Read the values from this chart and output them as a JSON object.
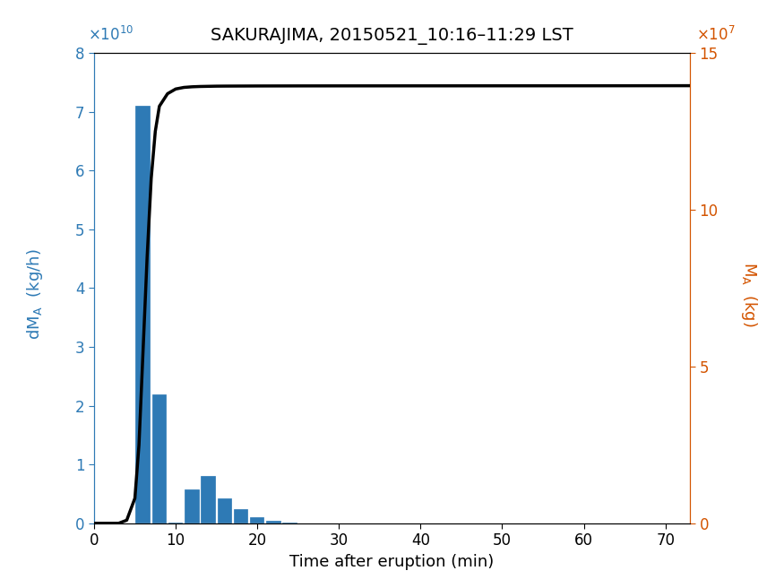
{
  "title": "SAKURAJIMA, 20150521_10:16–11:29 LST",
  "xlabel": "Time after eruption (min)",
  "bar_centers": [
    6,
    8,
    10,
    12,
    14,
    16,
    18,
    20,
    22,
    24,
    26
  ],
  "bar_heights": [
    71000000000.0,
    22000000000.0,
    200000000.0,
    5800000000.0,
    8000000000.0,
    4200000000.0,
    2400000000.0,
    1100000000.0,
    450000000.0,
    90000000.0,
    30000000.0
  ],
  "bar_color": "#2e7ab5",
  "bar_width": 1.8,
  "xlim": [
    0,
    73
  ],
  "ylim_left": [
    0,
    80000000000.0
  ],
  "ylim_right": [
    0,
    15000000.0
  ],
  "yticks_left": [
    0,
    10000000000.0,
    20000000000.0,
    30000000000.0,
    40000000000.0,
    50000000000.0,
    60000000000.0,
    70000000000.0,
    80000000000.0
  ],
  "yticks_right": [
    0,
    5000000.0,
    10000000.0,
    15000000.0
  ],
  "ytick_labels_right": [
    "0",
    "5",
    "10",
    "15"
  ],
  "xticks": [
    0,
    10,
    20,
    30,
    40,
    50,
    60,
    70
  ],
  "cum_x": [
    0,
    1,
    2,
    3,
    4,
    5,
    5.5,
    6,
    6.5,
    7,
    7.5,
    8,
    9,
    10,
    11,
    12,
    13,
    14,
    15,
    16,
    18,
    20,
    25,
    30,
    40,
    50,
    60,
    73
  ],
  "cum_y": [
    0,
    0,
    0,
    0,
    100000.0,
    800000.0,
    2500000.0,
    5500000.0,
    8500000.0,
    11000000.0,
    12500000.0,
    13300000.0,
    13700000.0,
    13850000.0,
    13900000.0,
    13920000.0,
    13930000.0,
    13935000.0,
    13940000.0,
    13942000.0,
    13944000.0,
    13946000.0,
    13948000.0,
    13949000.0,
    13950000.0,
    13951000.0,
    13952000.0,
    13955000.0
  ],
  "line_color": "#000000",
  "line_width": 2.5,
  "left_tick_color": "#2e7ab5",
  "right_tick_color": "#d35400",
  "title_fontsize": 14,
  "tick_fontsize": 12,
  "label_fontsize": 13,
  "exponent_fontsize": 12
}
